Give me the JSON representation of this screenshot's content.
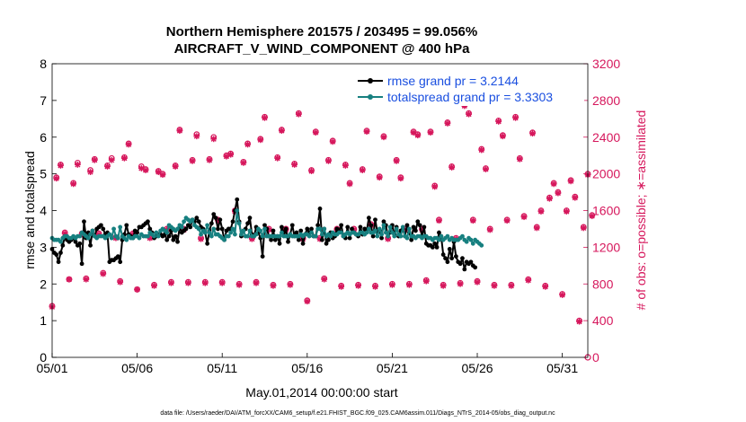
{
  "colors": {
    "rmse": "#000000",
    "spread": "#178080",
    "obs": "#d6175c",
    "legend_text": "#1a4fe0"
  },
  "chart_data": {
    "type": "line",
    "title_line1": "Northern Hemisphere 201575 / 203495 = 99.056%",
    "title_line2": "AIRCRAFT_V_WIND_COMPONENT @ 400 hPa",
    "xlabel": "May.01,2014 00:00:00 start",
    "ylabel_left": "rmse and totalspread",
    "ylabel_right": "# of obs: o=possible; ∗=assimilated",
    "xlim": [
      0,
      31.5
    ],
    "ylim_left": [
      0,
      8
    ],
    "ylim_right": [
      0,
      3200
    ],
    "x_ticks": [
      {
        "x": 0,
        "label": "05/01"
      },
      {
        "x": 5,
        "label": "05/06"
      },
      {
        "x": 10,
        "label": "05/11"
      },
      {
        "x": 15,
        "label": "05/16"
      },
      {
        "x": 20,
        "label": "05/21"
      },
      {
        "x": 25,
        "label": "05/26"
      },
      {
        "x": 30,
        "label": "05/31"
      }
    ],
    "y_ticks_left": [
      "0",
      "1",
      "2",
      "3",
      "4",
      "5",
      "6",
      "7",
      "8"
    ],
    "y_ticks_right": [
      "0",
      "400",
      "800",
      "1200",
      "1600",
      "2000",
      "2400",
      "2800",
      "3200"
    ],
    "legend": [
      {
        "label": "rmse grand pr = 3.2144",
        "series": "rmse"
      },
      {
        "label": "totalspread grand pr = 3.3303",
        "series": "totalspread"
      }
    ],
    "footnote": "data file: /Users/raeder/DAI/ATM_forcXX/CAM6_setup/f.e21.FHIST_BGC.f09_025.CAM6assim.011/Diags_NTrS_2014-05/obs_diag_output.nc",
    "series": [
      {
        "name": "rmse",
        "x_step": 0.125,
        "x_start": 0,
        "values": [
          2.95,
          2.85,
          2.8,
          2.6,
          2.85,
          3.05,
          3.3,
          3.2,
          3.15,
          3.2,
          3.25,
          3.15,
          3.05,
          3.1,
          2.55,
          3.7,
          3.25,
          3.4,
          3.05,
          3.45,
          3.3,
          3.5,
          3.55,
          3.6,
          3.5,
          3.35,
          3.4,
          2.6,
          2.65,
          2.65,
          2.7,
          2.75,
          2.6,
          3.2,
          3.35,
          3.6,
          3.35,
          3.3,
          3.25,
          3.45,
          3.4,
          3.55,
          3.55,
          3.6,
          3.65,
          3.7,
          3.5,
          3.4,
          3.25,
          3.3,
          3.35,
          3.35,
          3.3,
          3.35,
          3.2,
          3.3,
          3.45,
          3.2,
          3.3,
          3.15,
          3.55,
          3.4,
          3.45,
          3.5,
          3.6,
          3.55,
          3.75,
          3.7,
          3.8,
          3.7,
          3.55,
          3.5,
          3.4,
          3.1,
          3.45,
          3.65,
          3.9,
          3.8,
          3.5,
          3.75,
          3.5,
          3.2,
          3.45,
          3.5,
          3.5,
          3.7,
          4.0,
          4.3,
          3.7,
          3.3,
          3.45,
          3.5,
          3.65,
          3.8,
          3.35,
          3.3,
          3.55,
          3.4,
          3.25,
          2.75,
          3.6,
          3.5,
          3.3,
          3.2,
          3.45,
          3.2,
          3.3,
          3.1,
          3.55,
          3.4,
          3.5,
          3.15,
          3.35,
          3.6,
          3.3,
          3.4,
          3.2,
          3.45,
          3.1,
          3.35,
          3.5,
          3.4,
          3.5,
          3.3,
          3.3,
          3.6,
          4.05,
          3.2,
          3.5,
          3.1,
          3.2,
          3.4,
          3.25,
          3.3,
          3.5,
          3.45,
          3.6,
          3.3,
          3.25,
          3.55,
          3.25,
          3.5,
          3.4,
          3.35,
          3.3,
          3.55,
          3.35,
          3.5,
          3.45,
          3.8,
          3.6,
          3.3,
          3.75,
          3.4,
          3.45,
          3.25,
          3.7,
          3.6,
          3.3,
          3.4,
          3.6,
          3.35,
          3.55,
          3.3,
          3.45,
          3.5,
          3.3,
          3.6,
          3.4,
          3.2,
          3.55,
          3.45,
          3.7,
          3.6,
          3.3,
          3.55,
          3.1,
          3.05,
          3.05,
          3.0,
          3.1,
          3.0,
          3.4,
          3.3,
          2.8,
          2.7,
          2.6,
          2.95,
          2.7,
          3.15,
          2.75,
          2.6,
          2.55,
          2.7,
          2.4,
          2.6,
          2.55,
          2.6,
          2.5,
          2.45
        ]
      },
      {
        "name": "totalspread",
        "x_step": 0.125,
        "x_start": 0,
        "values": [
          3.25,
          3.2,
          3.2,
          3.2,
          3.15,
          3.25,
          3.3,
          3.3,
          3.25,
          3.25,
          3.3,
          3.25,
          3.3,
          3.3,
          3.4,
          3.35,
          3.3,
          3.25,
          3.35,
          3.45,
          3.3,
          3.25,
          3.3,
          3.3,
          3.3,
          3.25,
          3.3,
          3.35,
          3.25,
          3.5,
          3.3,
          3.25,
          3.55,
          3.3,
          3.25,
          3.2,
          3.3,
          3.25,
          3.25,
          3.3,
          3.3,
          3.25,
          3.35,
          3.3,
          3.3,
          3.3,
          3.4,
          3.35,
          3.3,
          3.4,
          3.3,
          3.45,
          3.5,
          3.45,
          3.4,
          3.6,
          3.55,
          3.5,
          3.45,
          3.5,
          3.6,
          3.55,
          3.7,
          3.8,
          3.75,
          3.7,
          3.75,
          3.6,
          3.55,
          3.5,
          3.35,
          3.45,
          3.4,
          3.6,
          3.4,
          3.3,
          3.5,
          3.35,
          3.35,
          3.3,
          3.25,
          3.2,
          3.3,
          3.3,
          3.4,
          3.5,
          3.35,
          4.0,
          3.65,
          3.35,
          3.45,
          3.3,
          3.3,
          3.45,
          3.3,
          3.3,
          3.35,
          3.5,
          3.45,
          3.3,
          3.5,
          3.3,
          3.3,
          3.3,
          3.3,
          3.3,
          3.3,
          3.3,
          3.4,
          3.3,
          3.3,
          3.3,
          3.35,
          3.3,
          3.3,
          3.3,
          3.3,
          3.35,
          3.3,
          3.35,
          3.35,
          3.3,
          3.4,
          3.3,
          3.3,
          3.5,
          3.5,
          3.35,
          3.5,
          3.3,
          3.35,
          3.3,
          3.4,
          3.35,
          3.35,
          3.4,
          3.4,
          3.3,
          3.35,
          3.4,
          3.35,
          3.4,
          3.4,
          3.35,
          3.35,
          3.4,
          3.4,
          3.35,
          3.4,
          3.5,
          3.4,
          3.4,
          3.45,
          3.3,
          3.5,
          3.35,
          3.6,
          3.4,
          3.3,
          3.55,
          3.4,
          3.3,
          3.5,
          3.35,
          3.3,
          3.55,
          3.3,
          3.25,
          3.5,
          3.3,
          3.3,
          3.25,
          3.3,
          3.3,
          3.25,
          3.3,
          3.3,
          3.25,
          3.25,
          3.2,
          3.25,
          3.25,
          3.2,
          3.3,
          3.2,
          3.25,
          3.3,
          3.2,
          3.25,
          3.2,
          3.2,
          3.2,
          3.25,
          3.3,
          3.2,
          3.15,
          3.25,
          3.2,
          3.1,
          3.2,
          3.15,
          3.1,
          3.05
        ]
      },
      {
        "name": "obs_possible",
        "axis": "right",
        "x_step": 0.25,
        "x_start": 0,
        "values": [
          560,
          1960,
          2100,
          1360,
          850,
          1900,
          2120,
          1350,
          860,
          2040,
          2160,
          1350,
          920,
          2090,
          2170,
          1310,
          830,
          2180,
          2330,
          1350,
          740,
          2080,
          2050,
          1310,
          790,
          2030,
          2000,
          1400,
          820,
          2090,
          2480,
          1400,
          820,
          2150,
          2430,
          1300,
          820,
          2160,
          2400,
          1500,
          820,
          2200,
          2220,
          1600,
          800,
          2130,
          2330,
          1300,
          820,
          2380,
          2620,
          1400,
          790,
          2180,
          2480,
          1400,
          800,
          2110,
          2660,
          1300,
          620,
          2040,
          2460,
          1300,
          860,
          2150,
          2360,
          1400,
          780,
          2100,
          1900,
          1400,
          790,
          2050,
          2470,
          1450,
          780,
          1970,
          2410,
          1300,
          800,
          2150,
          1960,
          1400,
          800,
          2460,
          2430,
          1400,
          840,
          2460,
          1870,
          1500,
          790,
          2560,
          2080,
          1300,
          810,
          2750,
          2660,
          1500,
          830,
          2270,
          2060,
          1400,
          790,
          2580,
          2420,
          1500,
          790,
          2620,
          2170,
          1540,
          850,
          2450,
          1420,
          1600,
          780,
          1740,
          1900,
          1800,
          690,
          1600,
          1930,
          1750,
          400,
          1420,
          2000,
          1550
        ]
      },
      {
        "name": "obs_assimilated",
        "axis": "right",
        "x_step": 0.25,
        "x_start": 0,
        "values": [
          550,
          1950,
          2090,
          1350,
          850,
          1890,
          2100,
          1340,
          850,
          2020,
          2150,
          1340,
          910,
          2080,
          2150,
          1300,
          820,
          2170,
          2320,
          1340,
          740,
          2060,
          2040,
          1300,
          780,
          2020,
          1990,
          1390,
          810,
          2080,
          2470,
          1390,
          810,
          2140,
          2410,
          1290,
          810,
          2150,
          2380,
          1490,
          810,
          2190,
          2210,
          1590,
          790,
          2120,
          2320,
          1290,
          810,
          2370,
          2610,
          1390,
          780,
          2170,
          2470,
          1390,
          790,
          2100,
          2650,
          1290,
          610,
          2030,
          2450,
          1290,
          850,
          2140,
          2350,
          1390,
          770,
          2090,
          1890,
          1390,
          780,
          2040,
          2460,
          1440,
          770,
          1960,
          2400,
          1290,
          790,
          2140,
          1950,
          1390,
          790,
          2450,
          2420,
          1390,
          830,
          2450,
          1860,
          1490,
          780,
          2550,
          2070,
          1290,
          800,
          2740,
          2650,
          1490,
          820,
          2260,
          2050,
          1390,
          780,
          2570,
          2410,
          1490,
          780,
          2610,
          2160,
          1530,
          840,
          2440,
          1410,
          1590,
          770,
          1730,
          1890,
          1790,
          680,
          1590,
          1920,
          1740,
          390,
          1410,
          1990,
          1540
        ]
      }
    ]
  }
}
